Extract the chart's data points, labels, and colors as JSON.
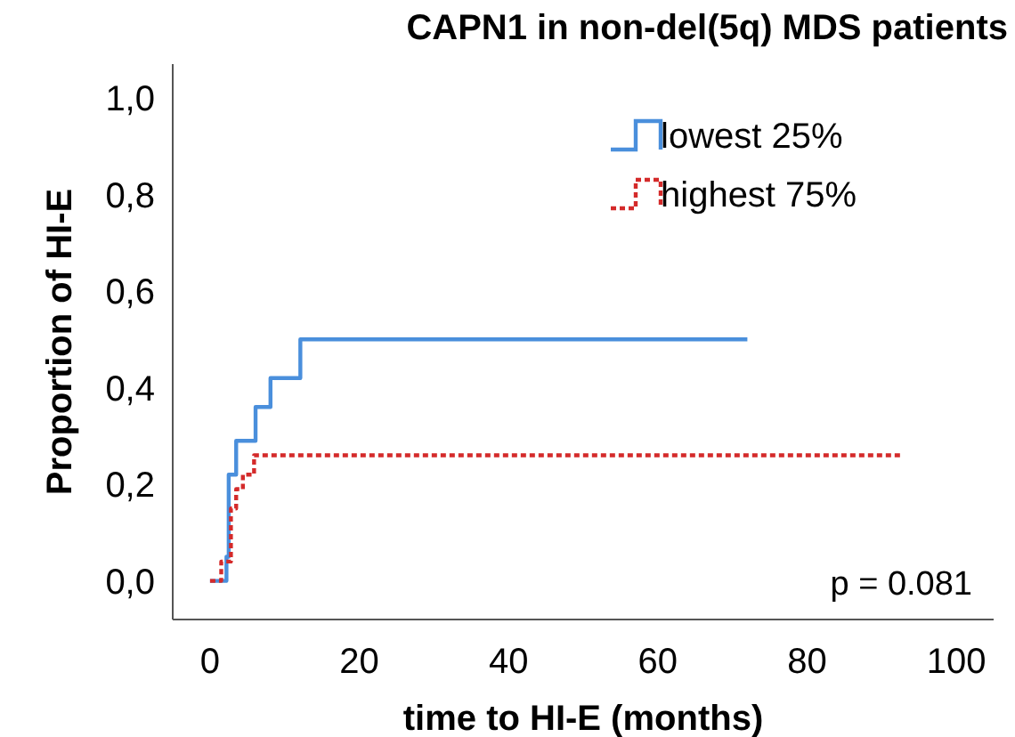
{
  "chart_data": {
    "type": "step",
    "title": "CAPN1 in non-del(5q) MDS patients",
    "xlabel": "time to HI-E (months)",
    "ylabel": "Proportion of HI-E",
    "series": [
      {
        "name": "lowest 25%",
        "color": "#4a8fdc",
        "line_style": "solid",
        "x": [
          0,
          2.2,
          2.5,
          3.5,
          6.1,
          8.1,
          12.1,
          72
        ],
        "values": [
          0,
          0.05,
          0.22,
          0.29,
          0.36,
          0.42,
          0.5,
          0.5
        ]
      },
      {
        "name": "highest 75%",
        "color": "#d42a2a",
        "line_style": "dotted",
        "x": [
          0,
          1.5,
          2.8,
          3.5,
          4.4,
          5.9,
          92.5
        ],
        "values": [
          0,
          0.04,
          0.15,
          0.19,
          0.22,
          0.26,
          0.26
        ]
      }
    ],
    "xlim": [
      -5,
      105
    ],
    "ylim": [
      -0.08,
      1.07
    ],
    "xticks": [
      0,
      20,
      40,
      60,
      80,
      100
    ],
    "yticks": [
      {
        "value": 0,
        "label": "0,0"
      },
      {
        "value": 0.2,
        "label": "0,2"
      },
      {
        "value": 0.4,
        "label": "0,4"
      },
      {
        "value": 0.6,
        "label": "0,6"
      },
      {
        "value": 0.8,
        "label": "0,8"
      },
      {
        "value": 1,
        "label": "1,0"
      }
    ],
    "legend": "top right",
    "grid": false,
    "annotations": [
      "p = 0.081"
    ]
  }
}
